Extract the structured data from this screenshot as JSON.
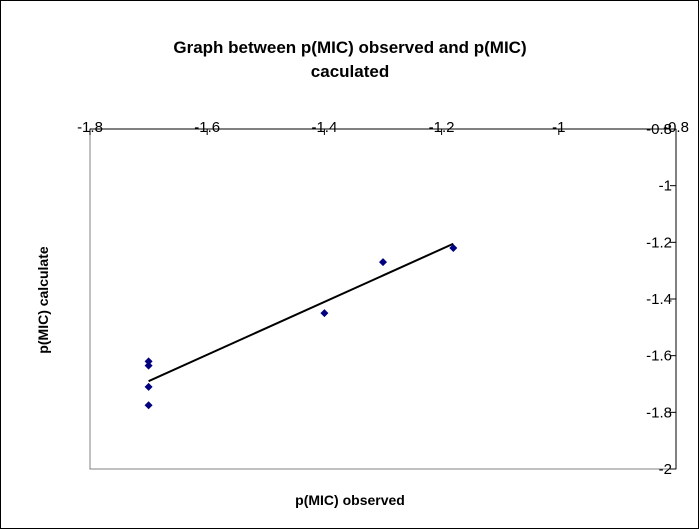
{
  "chart_data": {
    "type": "scatter",
    "title_line1": "Graph between p(MIC) observed and p(MIC)",
    "title_line2": "caculated",
    "xlabel": "p(MIC) observed",
    "ylabel": "p(MIC) calculate",
    "xlim": [
      -1.8,
      -0.8
    ],
    "ylim": [
      -2,
      -0.8
    ],
    "x_ticks": [
      "-1.8",
      "-1.6",
      "-1.4",
      "-1.2",
      "-1",
      "-0.8"
    ],
    "y_ticks": [
      "-0.8",
      "-1",
      "-1.2",
      "-1.4",
      "-1.6",
      "-1.8",
      "-2"
    ],
    "x_axis_position": "top",
    "y_axis_position": "right",
    "grid": false,
    "marker_color": "#000080",
    "trendline_color": "#000000",
    "points": [
      {
        "x": -1.7,
        "y": -1.62
      },
      {
        "x": -1.7,
        "y": -1.635
      },
      {
        "x": -1.7,
        "y": -1.71
      },
      {
        "x": -1.7,
        "y": -1.775
      },
      {
        "x": -1.4,
        "y": -1.45
      },
      {
        "x": -1.3,
        "y": -1.27
      },
      {
        "x": -1.18,
        "y": -1.22
      }
    ],
    "trendline": {
      "x1": -1.7,
      "y1": -1.69,
      "x2": -1.18,
      "y2": -1.205
    }
  }
}
